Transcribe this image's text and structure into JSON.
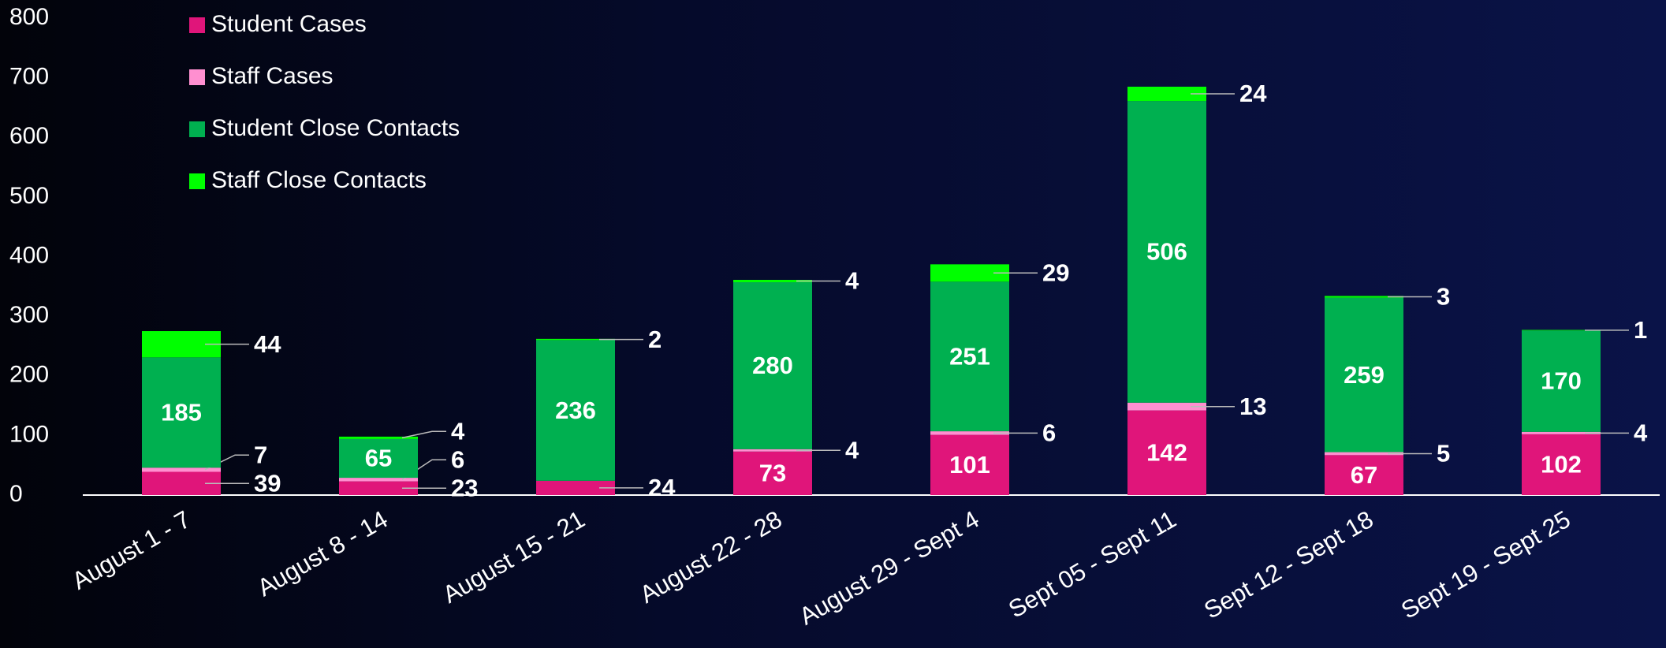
{
  "chart_data": {
    "type": "bar",
    "stacked": true,
    "categories": [
      "August 1 - 7",
      "August 8 - 14",
      "August 15 - 21",
      "August 22 - 28",
      "August 29 - Sept 4",
      "Sept 05 - Sept 11",
      "Sept 12 - Sept 18",
      "Sept 19 - Sept 25"
    ],
    "series": [
      {
        "name": "Student Cases",
        "color": "#e0157a",
        "values": [
          39,
          23,
          24,
          73,
          101,
          142,
          67,
          102
        ]
      },
      {
        "name": " Staff Cases",
        "color": "#ff8fd0",
        "values": [
          7,
          6,
          null,
          4,
          6,
          13,
          5,
          4
        ]
      },
      {
        "name": "Student Close Contacts",
        "color": "#00b050",
        "values": [
          185,
          65,
          236,
          280,
          251,
          506,
          259,
          170
        ]
      },
      {
        "name": "Staff Close Contacts",
        "color": "#00ff00",
        "values": [
          44,
          4,
          2,
          4,
          29,
          24,
          3,
          1
        ]
      }
    ],
    "ylim": [
      0,
      800
    ],
    "yticks": [
      0,
      100,
      200,
      300,
      400,
      500,
      600,
      700,
      800
    ],
    "grid": false,
    "legend": "top-left"
  }
}
